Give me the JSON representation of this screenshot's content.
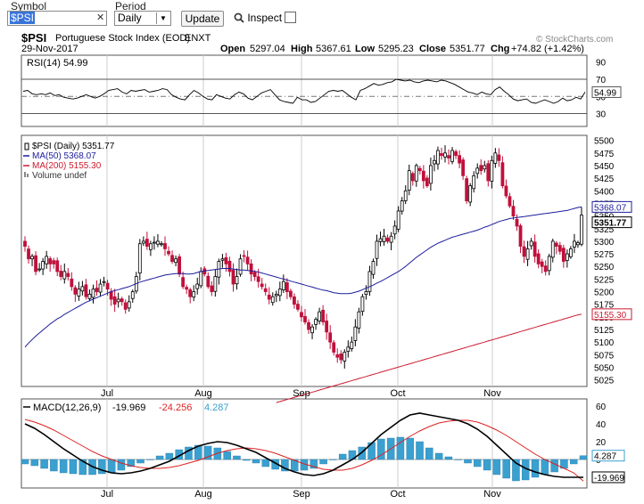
{
  "toolbar": {
    "symbol_label": "Symbol",
    "symbol_value": "$PSI",
    "clear_glyph": "✕",
    "period_label": "Period",
    "period_value": "Daily",
    "period_arrow": "▼",
    "update_label": "Update",
    "inspect_label": "Inspect",
    "inspect_icon": "magnifier-icon"
  },
  "header": {
    "ticker": "$PSI",
    "name": "Portuguese Stock Index (EOD)",
    "exchange": "ENXT",
    "date": "29-Nov-2017",
    "open_label": "Open",
    "open": "5297.04",
    "high_label": "High",
    "high": "5367.61",
    "low_label": "Low",
    "low": "5295.23",
    "close_label": "Close",
    "close": "5351.77",
    "chg_label": "Chg",
    "chg": "+74.82 (+1.42%)",
    "watermark": "© StockCharts.com"
  },
  "colors": {
    "up": "#000000",
    "down": "#c0103b",
    "ma50": "#1c1c9c",
    "ma200": "#cc1a2f",
    "macd_hist": "#3aa0d0",
    "signal": "#dd2222"
  },
  "chart_data": [
    {
      "type": "line",
      "title": "RSI(14) 54.99",
      "series": [
        {
          "name": "RSI(14)",
          "values": [
            56,
            57,
            53,
            52,
            53,
            52,
            54,
            51,
            52,
            49,
            48,
            47,
            48,
            50,
            52,
            50,
            48,
            50,
            53,
            57,
            58,
            59,
            55,
            53,
            57,
            56,
            57,
            58,
            55,
            56,
            57,
            59,
            58,
            52,
            49,
            47,
            46,
            52,
            57,
            54,
            50,
            47,
            46,
            52,
            50,
            48,
            47,
            52,
            55,
            53,
            48,
            46,
            50,
            54,
            56,
            58,
            52,
            46,
            44,
            43,
            42,
            49,
            46,
            46,
            43,
            44,
            48,
            52,
            56,
            57,
            56,
            57,
            53,
            49,
            46,
            57,
            59,
            62,
            65,
            63,
            64,
            66,
            67,
            70,
            69,
            68,
            69,
            67,
            66,
            68,
            69,
            68,
            67,
            69,
            68,
            66,
            64,
            61,
            58,
            55,
            54,
            52,
            55,
            53,
            52,
            58,
            61,
            56,
            52,
            47,
            45,
            46,
            47,
            43,
            42,
            44,
            46,
            44,
            42,
            44,
            48,
            45,
            46,
            49,
            47,
            55
          ]
        }
      ],
      "yticks": [
        90,
        70,
        50,
        30
      ],
      "ylim": [
        15,
        98
      ],
      "reference_lines": [
        70,
        50,
        30
      ],
      "last_value": "54.99"
    },
    {
      "type": "candlestick",
      "title": "$PSI (Daily) 5351.77",
      "legend": [
        {
          "label": "$PSI (Daily) 5351.77",
          "mark": "candle-icon"
        },
        {
          "label": "MA(50) 5368.07",
          "color": "#1c1c9c"
        },
        {
          "label": "MA(200) 5155.30",
          "color": "#cc1a2f"
        },
        {
          "label": "Volume undef",
          "mark": "volume-icon"
        }
      ],
      "close": [
        5290,
        5265,
        5270,
        5240,
        5245,
        5260,
        5270,
        5255,
        5255,
        5240,
        5230,
        5240,
        5230,
        5210,
        5195,
        5205,
        5210,
        5190,
        5195,
        5205,
        5200,
        5215,
        5220,
        5205,
        5185,
        5175,
        5185,
        5180,
        5165,
        5180,
        5200,
        5230,
        5295,
        5300,
        5290,
        5295,
        5298,
        5300,
        5295,
        5285,
        5275,
        5260,
        5265,
        5235,
        5210,
        5205,
        5190,
        5200,
        5215,
        5240,
        5235,
        5210,
        5200,
        5230,
        5260,
        5265,
        5255,
        5240,
        5215,
        5230,
        5265,
        5270,
        5255,
        5235,
        5230,
        5220,
        5210,
        5200,
        5185,
        5190,
        5195,
        5205,
        5220,
        5200,
        5190,
        5175,
        5165,
        5150,
        5140,
        5125,
        5130,
        5145,
        5160,
        5140,
        5120,
        5100,
        5080,
        5070,
        5065,
        5080,
        5090,
        5100,
        5130,
        5160,
        5190,
        5200,
        5240,
        5260,
        5300,
        5305,
        5310,
        5300,
        5310,
        5330,
        5360,
        5380,
        5400,
        5440,
        5420,
        5450,
        5440,
        5420,
        5410,
        5450,
        5460,
        5480,
        5470,
        5475,
        5465,
        5480,
        5470,
        5455,
        5430,
        5380,
        5410,
        5430,
        5445,
        5440,
        5450,
        5420,
        5460,
        5475,
        5460,
        5410,
        5390,
        5370,
        5350,
        5330,
        5290,
        5270,
        5285,
        5300,
        5270,
        5255,
        5250,
        5240,
        5270,
        5300,
        5290,
        5280,
        5260,
        5275,
        5285,
        5300,
        5297,
        5351.77
      ],
      "ma50": [
        5090,
        5098,
        5105,
        5112,
        5118,
        5124,
        5130,
        5136,
        5141,
        5146,
        5150,
        5155,
        5159,
        5163,
        5167,
        5171,
        5175,
        5179,
        5182,
        5185,
        5188,
        5191,
        5194,
        5197,
        5200,
        5202,
        5204,
        5206,
        5208,
        5210,
        5213,
        5216,
        5219,
        5221,
        5223,
        5225,
        5227,
        5229,
        5231,
        5233,
        5234,
        5235,
        5236,
        5236,
        5236,
        5235,
        5235,
        5236,
        5238,
        5240,
        5241,
        5242,
        5243,
        5244,
        5245,
        5246,
        5246,
        5246,
        5245,
        5244,
        5243,
        5243,
        5242,
        5241,
        5240,
        5239,
        5237,
        5235,
        5233,
        5231,
        5229,
        5227,
        5225,
        5223,
        5221,
        5219,
        5217,
        5215,
        5213,
        5211,
        5209,
        5207,
        5205,
        5203,
        5202,
        5200,
        5198,
        5197,
        5196,
        5196,
        5196,
        5197,
        5199,
        5201,
        5204,
        5207,
        5210,
        5213,
        5217,
        5220,
        5224,
        5228,
        5232,
        5236,
        5240,
        5245,
        5250,
        5256,
        5262,
        5268,
        5273,
        5278,
        5283,
        5288,
        5292,
        5296,
        5299,
        5302,
        5305,
        5308,
        5310,
        5312,
        5314,
        5316,
        5318,
        5320,
        5322,
        5325,
        5328,
        5330,
        5333,
        5336,
        5339,
        5341,
        5343,
        5345,
        5346,
        5347,
        5348,
        5349,
        5350,
        5351,
        5352,
        5353,
        5354,
        5355,
        5356,
        5357,
        5358,
        5359,
        5360,
        5361,
        5363,
        5365,
        5367,
        5368.07
      ],
      "ma200": [
        4980,
        4982,
        4984,
        4986,
        4988,
        4990,
        4992,
        4994,
        4996,
        4998,
        5000,
        5002,
        5004,
        5006,
        5008,
        5010,
        5012,
        5014,
        5016,
        5018,
        5020,
        5022,
        5024,
        5026,
        5028,
        5030,
        5032,
        5034,
        5036,
        5038,
        5040,
        5042,
        5044,
        5046,
        5048,
        5050,
        5052,
        5054,
        5056,
        5058,
        5060,
        5062,
        5064,
        5066,
        5068,
        5070,
        5072,
        5074,
        5076,
        5078,
        5080,
        5082,
        5084,
        5086,
        5088,
        5090,
        5092,
        5094,
        5096,
        5098,
        5100,
        5102,
        5104,
        5106,
        5108,
        5110,
        5112,
        5114,
        5116,
        5118,
        5120,
        5122,
        5124,
        5126,
        5128,
        5130,
        5132,
        5134,
        5136,
        5138,
        5140,
        5142,
        5144,
        5146,
        5148,
        5150,
        5152,
        5154,
        5155.3
      ],
      "ma200_start_index": 70,
      "yticks": [
        5500,
        5475,
        5450,
        5425,
        5400,
        5375,
        5350,
        5325,
        5300,
        5275,
        5250,
        5225,
        5200,
        5175,
        5150,
        5125,
        5100,
        5075,
        5050,
        5025
      ],
      "ylim": [
        5012,
        5510
      ],
      "last_ma50": "5368.07",
      "last_close": "5351.77",
      "last_ma200": "5155.30"
    },
    {
      "type": "line",
      "title": "MACD(12,26,9)",
      "legend": [
        {
          "label": "MACD(12,26,9)",
          "color": "#000000"
        },
        {
          "label": "-19.969",
          "color": "#000000"
        },
        {
          "label": "-24.256",
          "color": "#dd2222"
        },
        {
          "label": "4.287",
          "color": "#3aa0d0"
        }
      ],
      "series": [
        {
          "name": "MACD",
          "values": [
            40,
            35,
            28,
            20,
            12,
            5,
            -2,
            -8,
            -12,
            -15,
            -16,
            -15,
            -13,
            -10,
            -6,
            -2,
            4,
            10,
            15,
            18,
            20,
            19,
            16,
            12,
            8,
            2,
            -4,
            -10,
            -14,
            -17,
            -18,
            -16,
            -12,
            -6,
            0,
            8,
            18,
            28,
            36,
            44,
            50,
            52,
            50,
            48,
            46,
            44,
            40,
            34,
            26,
            16,
            6,
            -4,
            -10,
            -14,
            -17,
            -19,
            -20,
            -20,
            -19.969
          ]
        },
        {
          "name": "Signal",
          "values": [
            45,
            42,
            38,
            33,
            27,
            21,
            15,
            9,
            4,
            0,
            -4,
            -7,
            -9,
            -10,
            -10,
            -9,
            -7,
            -4,
            -1,
            3,
            7,
            10,
            12,
            13,
            12,
            10,
            7,
            3,
            -1,
            -5,
            -8,
            -11,
            -12,
            -12,
            -10,
            -6,
            -1,
            5,
            12,
            19,
            26,
            32,
            37,
            41,
            43,
            44,
            44,
            42,
            38,
            33,
            27,
            20,
            13,
            6,
            0,
            -5,
            -10,
            -15,
            -24.256
          ]
        },
        {
          "name": "Histogram",
          "values": [
            -5,
            -7,
            -10,
            -13,
            -15,
            -16,
            -17,
            -17,
            -16,
            -15,
            -12,
            -8,
            -4,
            0,
            4,
            7,
            11,
            14,
            16,
            15,
            13,
            9,
            4,
            -1,
            -4,
            -8,
            -11,
            -13,
            -13,
            -12,
            -10,
            -5,
            0,
            6,
            10,
            14,
            19,
            23,
            24,
            25,
            24,
            20,
            13,
            7,
            3,
            0,
            -4,
            -8,
            -12,
            -17,
            -21,
            -24,
            -23,
            -20,
            -17,
            -14,
            -10,
            -5,
            4.287
          ]
        }
      ],
      "yticks": [
        60,
        40,
        20,
        0
      ],
      "ylim": [
        -32,
        68
      ]
    }
  ],
  "xaxis": {
    "labels": [
      "Jul",
      "Aug",
      "Sep",
      "Oct",
      "Nov"
    ]
  }
}
